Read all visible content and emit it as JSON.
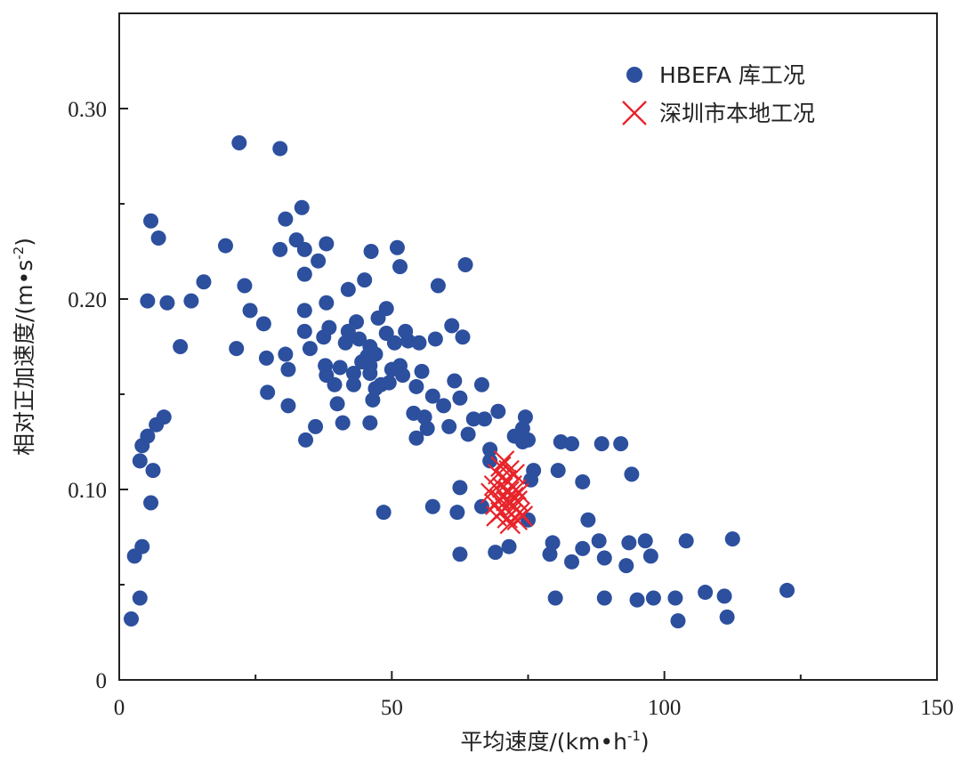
{
  "chart_data": {
    "type": "scatter",
    "xlabel": "平均速度/(km•h",
    "xlabel_sup": "-1",
    "xlabel_end": ")",
    "ylabel": "相对正加速度/(m•s",
    "ylabel_sup": "-2",
    "ylabel_end": ")",
    "xlim": [
      0,
      150
    ],
    "ylim": [
      0,
      0.35
    ],
    "x_ticks": [
      0,
      50,
      100,
      150
    ],
    "x_tick_labels": [
      "0",
      "50",
      "100",
      "150"
    ],
    "y_ticks": [
      0,
      0.1,
      0.2,
      0.3
    ],
    "y_tick_labels": [
      "0",
      "0.10",
      "0.20",
      "0.30"
    ],
    "legend_position": "top-right",
    "series": [
      {
        "name": "HBEFA 库工况",
        "marker": "circle",
        "color": "#2c4f9e",
        "points": [
          [
            2.2,
            0.032
          ],
          [
            2.8,
            0.065
          ],
          [
            3.8,
            0.043
          ],
          [
            4.2,
            0.07
          ],
          [
            3.8,
            0.115
          ],
          [
            4.2,
            0.123
          ],
          [
            5.2,
            0.128
          ],
          [
            5.8,
            0.093
          ],
          [
            6.2,
            0.11
          ],
          [
            6.8,
            0.134
          ],
          [
            8.2,
            0.138
          ],
          [
            5.2,
            0.199
          ],
          [
            5.8,
            0.241
          ],
          [
            7.2,
            0.232
          ],
          [
            8.8,
            0.198
          ],
          [
            11.2,
            0.175
          ],
          [
            13.2,
            0.199
          ],
          [
            15.5,
            0.209
          ],
          [
            19.5,
            0.228
          ],
          [
            21.5,
            0.174
          ],
          [
            22,
            0.282
          ],
          [
            23,
            0.207
          ],
          [
            24,
            0.194
          ],
          [
            26.5,
            0.187
          ],
          [
            27,
            0.169
          ],
          [
            27.2,
            0.151
          ],
          [
            29.5,
            0.279
          ],
          [
            29.5,
            0.226
          ],
          [
            30.5,
            0.242
          ],
          [
            30.5,
            0.171
          ],
          [
            31,
            0.163
          ],
          [
            31,
            0.144
          ],
          [
            32.5,
            0.231
          ],
          [
            33.5,
            0.248
          ],
          [
            34,
            0.226
          ],
          [
            34,
            0.213
          ],
          [
            34,
            0.194
          ],
          [
            34,
            0.183
          ],
          [
            34.2,
            0.126
          ],
          [
            35,
            0.174
          ],
          [
            36,
            0.133
          ],
          [
            36.5,
            0.22
          ],
          [
            37.5,
            0.18
          ],
          [
            37.8,
            0.165
          ],
          [
            38,
            0.16
          ],
          [
            38,
            0.229
          ],
          [
            38,
            0.198
          ],
          [
            38.5,
            0.185
          ],
          [
            39.5,
            0.155
          ],
          [
            40,
            0.145
          ],
          [
            40.5,
            0.164
          ],
          [
            41,
            0.135
          ],
          [
            41.5,
            0.177
          ],
          [
            42,
            0.205
          ],
          [
            42,
            0.183
          ],
          [
            43,
            0.161
          ],
          [
            43,
            0.155
          ],
          [
            43.5,
            0.188
          ],
          [
            44,
            0.179
          ],
          [
            44.5,
            0.167
          ],
          [
            45,
            0.21
          ],
          [
            45.5,
            0.17
          ],
          [
            46,
            0.165
          ],
          [
            46,
            0.161
          ],
          [
            46,
            0.175
          ],
          [
            46,
            0.135
          ],
          [
            46.2,
            0.225
          ],
          [
            46.5,
            0.147
          ],
          [
            47,
            0.171
          ],
          [
            47,
            0.153
          ],
          [
            47.5,
            0.19
          ],
          [
            48,
            0.155
          ],
          [
            48.5,
            0.088
          ],
          [
            49,
            0.195
          ],
          [
            49,
            0.182
          ],
          [
            49.5,
            0.156
          ],
          [
            50,
            0.163
          ],
          [
            50.5,
            0.177
          ],
          [
            51,
            0.227
          ],
          [
            51.5,
            0.217
          ],
          [
            51.5,
            0.165
          ],
          [
            52,
            0.16
          ],
          [
            52.5,
            0.183
          ],
          [
            53,
            0.178
          ],
          [
            54,
            0.14
          ],
          [
            54.5,
            0.154
          ],
          [
            54.5,
            0.127
          ],
          [
            55,
            0.177
          ],
          [
            55.5,
            0.162
          ],
          [
            56,
            0.138
          ],
          [
            56.5,
            0.132
          ],
          [
            57.5,
            0.149
          ],
          [
            57.5,
            0.091
          ],
          [
            58,
            0.179
          ],
          [
            58.5,
            0.207
          ],
          [
            59.5,
            0.144
          ],
          [
            60.5,
            0.133
          ],
          [
            61,
            0.186
          ],
          [
            61.5,
            0.157
          ],
          [
            62,
            0.088
          ],
          [
            62.5,
            0.101
          ],
          [
            62.5,
            0.066
          ],
          [
            62.5,
            0.148
          ],
          [
            63,
            0.18
          ],
          [
            63.5,
            0.218
          ],
          [
            64,
            0.129
          ],
          [
            65,
            0.137
          ],
          [
            66.5,
            0.155
          ],
          [
            66.5,
            0.091
          ],
          [
            67,
            0.137
          ],
          [
            68,
            0.121
          ],
          [
            68,
            0.115
          ],
          [
            69,
            0.067
          ],
          [
            69.5,
            0.141
          ],
          [
            71.5,
            0.07
          ],
          [
            72.5,
            0.128
          ],
          [
            74,
            0.125
          ],
          [
            74,
            0.132
          ],
          [
            74.5,
            0.138
          ],
          [
            75,
            0.126
          ],
          [
            75,
            0.084
          ],
          [
            75.5,
            0.105
          ],
          [
            76,
            0.11
          ],
          [
            79,
            0.066
          ],
          [
            79.5,
            0.072
          ],
          [
            80,
            0.043
          ],
          [
            80.5,
            0.11
          ],
          [
            81,
            0.125
          ],
          [
            83,
            0.124
          ],
          [
            83,
            0.062
          ],
          [
            85,
            0.104
          ],
          [
            85,
            0.069
          ],
          [
            86,
            0.084
          ],
          [
            88,
            0.073
          ],
          [
            88.5,
            0.124
          ],
          [
            89,
            0.043
          ],
          [
            89,
            0.064
          ],
          [
            92,
            0.124
          ],
          [
            93,
            0.06
          ],
          [
            93.5,
            0.072
          ],
          [
            94,
            0.108
          ],
          [
            95,
            0.042
          ],
          [
            96.5,
            0.073
          ],
          [
            97.5,
            0.065
          ],
          [
            98,
            0.043
          ],
          [
            102,
            0.043
          ],
          [
            102.5,
            0.031
          ],
          [
            104,
            0.073
          ],
          [
            107.5,
            0.046
          ],
          [
            111,
            0.044
          ],
          [
            111.5,
            0.033
          ],
          [
            112.5,
            0.074
          ],
          [
            122.5,
            0.047
          ]
        ]
      },
      {
        "name": "深圳市本地工况",
        "marker": "x",
        "color": "#e8242b",
        "points": [
          [
            68.2,
            0.098
          ],
          [
            68.8,
            0.102
          ],
          [
            69,
            0.092
          ],
          [
            69.5,
            0.108
          ],
          [
            69.8,
            0.095
          ],
          [
            70,
            0.088
          ],
          [
            70,
            0.112
          ],
          [
            70.3,
            0.101
          ],
          [
            70.5,
            0.097
          ],
          [
            70.8,
            0.09
          ],
          [
            71,
            0.105
          ],
          [
            71,
            0.094
          ],
          [
            71.2,
            0.085
          ],
          [
            71.5,
            0.11
          ],
          [
            71.5,
            0.099
          ],
          [
            71.8,
            0.093
          ],
          [
            72,
            0.102
          ],
          [
            72,
            0.087
          ],
          [
            72.3,
            0.096
          ],
          [
            72.5,
            0.108
          ],
          [
            72.5,
            0.091
          ],
          [
            72.8,
            0.1
          ],
          [
            73,
            0.094
          ],
          [
            73,
            0.084
          ],
          [
            73.3,
            0.098
          ],
          [
            73.5,
            0.088
          ],
          [
            74,
            0.086
          ],
          [
            70.6,
            0.115
          ],
          [
            69.2,
            0.086
          ],
          [
            71.7,
            0.082
          ]
        ]
      }
    ]
  }
}
